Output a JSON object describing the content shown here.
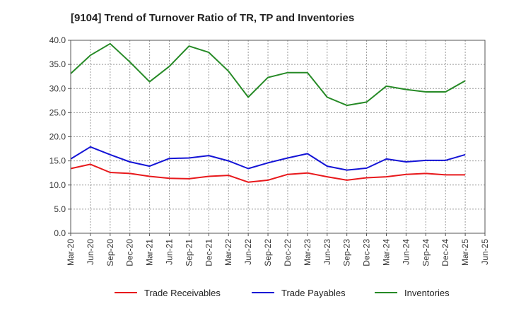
{
  "chart_data": {
    "type": "line",
    "title": "[9104]  Trend of Turnover Ratio of TR, TP and Inventories",
    "xlabel": "",
    "ylabel": "",
    "ylim": [
      0,
      40
    ],
    "y_ticks": [
      "0.0",
      "5.0",
      "10.0",
      "15.0",
      "20.0",
      "25.0",
      "30.0",
      "35.0",
      "40.0"
    ],
    "categories": [
      "Mar-20",
      "Jun-20",
      "Sep-20",
      "Dec-20",
      "Mar-21",
      "Jun-21",
      "Sep-21",
      "Dec-21",
      "Mar-22",
      "Jun-22",
      "Sep-22",
      "Dec-22",
      "Mar-23",
      "Jun-23",
      "Sep-23",
      "Dec-23",
      "Mar-24",
      "Jun-24",
      "Sep-24",
      "Dec-24",
      "Mar-25",
      "Jun-25"
    ],
    "grid": true,
    "legend_position": "bottom",
    "series": [
      {
        "name": "Trade Receivables",
        "color": "#e8191c",
        "values": [
          13.4,
          14.3,
          12.6,
          12.4,
          11.8,
          11.4,
          11.3,
          11.8,
          12.0,
          10.6,
          11.0,
          12.2,
          12.5,
          11.7,
          11.0,
          11.5,
          11.7,
          12.2,
          12.4,
          12.1,
          12.1,
          null
        ]
      },
      {
        "name": "Trade Payables",
        "color": "#1414d6",
        "values": [
          15.4,
          17.9,
          16.3,
          14.8,
          13.9,
          15.5,
          15.6,
          16.1,
          15.0,
          13.4,
          14.6,
          15.6,
          16.5,
          13.9,
          13.1,
          13.5,
          15.4,
          14.8,
          15.1,
          15.1,
          16.3,
          null
        ]
      },
      {
        "name": "Inventories",
        "color": "#268a26",
        "values": [
          33.1,
          36.9,
          39.3,
          35.5,
          31.4,
          34.6,
          38.8,
          37.5,
          33.6,
          28.2,
          32.3,
          33.3,
          33.3,
          28.2,
          26.5,
          27.2,
          30.5,
          29.8,
          29.3,
          29.3,
          31.6,
          null
        ]
      }
    ]
  }
}
